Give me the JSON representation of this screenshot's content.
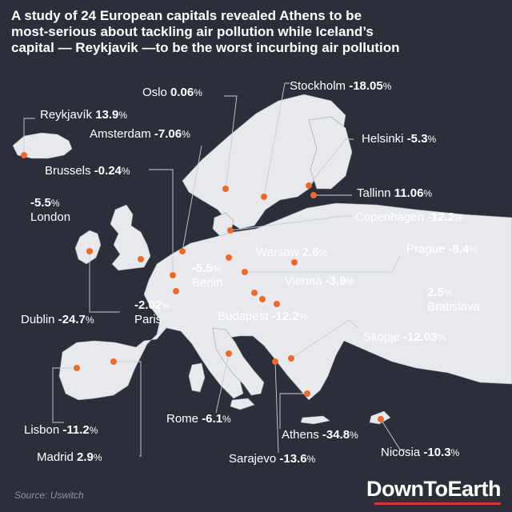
{
  "headline": [
    "A study of 24 European capitals revealed Athens to be",
    "most-serious about tackling air pollution while Iceland’s",
    "capital — Reykjavik —to be the worst incurbing air pollution"
  ],
  "source": "Source:  Uswitch",
  "brand": "DownToEarth",
  "colors": {
    "background": "#2b2f3a",
    "land": "#e7e9ed",
    "dot": "#ee6a2b",
    "text": "#ffffff",
    "brand_bar": "#d23b2b"
  },
  "capitals": [
    {
      "id": "reykjavik",
      "name": "Reykjavík",
      "value": "13.9"
    },
    {
      "id": "oslo",
      "name": "Oslo",
      "value": "0.06"
    },
    {
      "id": "stockholm",
      "name": "Stockholm",
      "value": "-18.05"
    },
    {
      "id": "amsterdam",
      "name": "Amsterdam",
      "value": "-7.06"
    },
    {
      "id": "helsinki",
      "name": "Helsinki",
      "value": "-5.3"
    },
    {
      "id": "brussels",
      "name": "Brussels",
      "value": "-0.24"
    },
    {
      "id": "tallinn",
      "name": "Tallinn",
      "value": "11.06"
    },
    {
      "id": "london",
      "name": "London",
      "value": "-5.5"
    },
    {
      "id": "copenhagen",
      "name": "Copenhagen",
      "value": "-12.2"
    },
    {
      "id": "prague",
      "name": "Prague",
      "value": "-8.4"
    },
    {
      "id": "warsaw",
      "name": "Warsaw",
      "value": "2.6"
    },
    {
      "id": "berlin",
      "name": "Berlin",
      "value": "-5.5"
    },
    {
      "id": "vienna",
      "name": "Vienna",
      "value": "-3.9"
    },
    {
      "id": "bratislava",
      "name": "Bratislava",
      "value": "2.5"
    },
    {
      "id": "paris",
      "name": "Paris",
      "value": "-2.02"
    },
    {
      "id": "dublin",
      "name": "Dublin",
      "value": "-24.7"
    },
    {
      "id": "budapest",
      "name": "Budapest",
      "value": "-12.2"
    },
    {
      "id": "skopje",
      "name": "Skopje",
      "value": "-12.03"
    },
    {
      "id": "lisbon",
      "name": "Lisbon",
      "value": "-11.2"
    },
    {
      "id": "rome",
      "name": "Rome",
      "value": "-6.1"
    },
    {
      "id": "athens",
      "name": "Athens",
      "value": "-34.8"
    },
    {
      "id": "nicosia",
      "name": "Nicosia",
      "value": "-10.3"
    },
    {
      "id": "madrid",
      "name": "Madrid",
      "value": "2.9"
    },
    {
      "id": "sarajevo",
      "name": "Sarajevo",
      "value": "-13.6"
    }
  ]
}
